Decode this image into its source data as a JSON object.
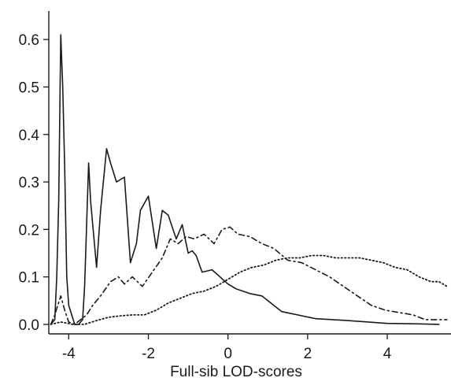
{
  "chart_data": {
    "type": "line",
    "title": "",
    "xlabel": "Full-sib LOD-scores",
    "ylabel": "",
    "xlim": [
      -4.5,
      5.6
    ],
    "ylim": [
      -0.02,
      0.66
    ],
    "xticks": [
      -4,
      -2,
      0,
      2,
      4
    ],
    "xtick_labels": [
      "-4",
      "-2",
      "0",
      "2",
      "4"
    ],
    "yticks": [
      0.0,
      0.1,
      0.2,
      0.3,
      0.4,
      0.5,
      0.6
    ],
    "ytick_labels": [
      "0.0",
      "0.1",
      "0.2",
      "0.3",
      "0.4",
      "0.5",
      "0.6"
    ],
    "grid": false,
    "legend": "none",
    "series": [
      {
        "line_style": "solid",
        "color": "#1a1a1a",
        "x": [
          -4.45,
          -4.35,
          -4.3,
          -4.25,
          -4.2,
          -4.15,
          -4.1,
          -4.05,
          -4.0,
          -3.85,
          -3.75,
          -3.65,
          -3.6,
          -3.5,
          -3.45,
          -3.3,
          -3.2,
          -3.05,
          -2.95,
          -2.8,
          -2.6,
          -2.45,
          -2.3,
          -2.2,
          -2.0,
          -1.8,
          -1.65,
          -1.5,
          -1.3,
          -1.15,
          -1.0,
          -0.9,
          -0.8,
          -0.65,
          -0.4,
          0.0,
          0.2,
          0.55,
          0.85,
          1.35,
          2.2,
          3.0,
          4.0,
          4.8,
          5.3
        ],
        "y": [
          0.0,
          0.01,
          0.1,
          0.26,
          0.61,
          0.5,
          0.33,
          0.1,
          0.04,
          0.0,
          0.0,
          0.01,
          0.08,
          0.34,
          0.26,
          0.12,
          0.24,
          0.37,
          0.34,
          0.3,
          0.31,
          0.13,
          0.17,
          0.24,
          0.27,
          0.16,
          0.24,
          0.23,
          0.18,
          0.21,
          0.15,
          0.155,
          0.145,
          0.11,
          0.115,
          0.085,
          0.075,
          0.065,
          0.06,
          0.027,
          0.012,
          0.008,
          0.002,
          0.001,
          0.0
        ]
      },
      {
        "line_style": "dashdot",
        "color": "#1a1a1a",
        "x": [
          -4.45,
          -4.35,
          -4.2,
          -4.1,
          -4.0,
          -3.85,
          -3.7,
          -3.55,
          -3.4,
          -3.2,
          -2.95,
          -2.75,
          -2.6,
          -2.4,
          -2.15,
          -1.9,
          -1.65,
          -1.45,
          -1.25,
          -1.05,
          -0.85,
          -0.6,
          -0.35,
          -0.15,
          0.05,
          0.25,
          0.55,
          0.85,
          1.15,
          1.5,
          1.85,
          2.2,
          2.55,
          2.9,
          3.25,
          3.6,
          3.95,
          4.3,
          4.65,
          4.95,
          5.25,
          5.5
        ],
        "y": [
          0.0,
          0.02,
          0.06,
          0.03,
          0.005,
          0.0,
          0.01,
          0.02,
          0.04,
          0.06,
          0.09,
          0.1,
          0.085,
          0.1,
          0.08,
          0.11,
          0.14,
          0.18,
          0.17,
          0.185,
          0.18,
          0.19,
          0.17,
          0.2,
          0.205,
          0.19,
          0.185,
          0.17,
          0.16,
          0.135,
          0.13,
          0.115,
          0.1,
          0.08,
          0.06,
          0.04,
          0.03,
          0.025,
          0.02,
          0.01,
          0.01,
          0.01
        ]
      },
      {
        "line_style": "dotted",
        "color": "#1a1a1a",
        "x": [
          -4.45,
          -4.2,
          -3.9,
          -3.6,
          -3.3,
          -3.0,
          -2.7,
          -2.4,
          -2.1,
          -1.8,
          -1.5,
          -1.2,
          -0.9,
          -0.6,
          -0.3,
          0.0,
          0.3,
          0.6,
          0.9,
          1.2,
          1.5,
          1.8,
          2.1,
          2.4,
          2.7,
          3.0,
          3.3,
          3.6,
          3.9,
          4.2,
          4.5,
          4.8,
          5.1,
          5.3,
          5.5
        ],
        "y": [
          0.0,
          0.005,
          0.0,
          0.0,
          0.008,
          0.015,
          0.018,
          0.02,
          0.02,
          0.03,
          0.045,
          0.055,
          0.065,
          0.07,
          0.08,
          0.095,
          0.11,
          0.12,
          0.125,
          0.135,
          0.14,
          0.14,
          0.145,
          0.145,
          0.14,
          0.14,
          0.14,
          0.135,
          0.13,
          0.12,
          0.115,
          0.1,
          0.09,
          0.09,
          0.08
        ]
      }
    ]
  }
}
